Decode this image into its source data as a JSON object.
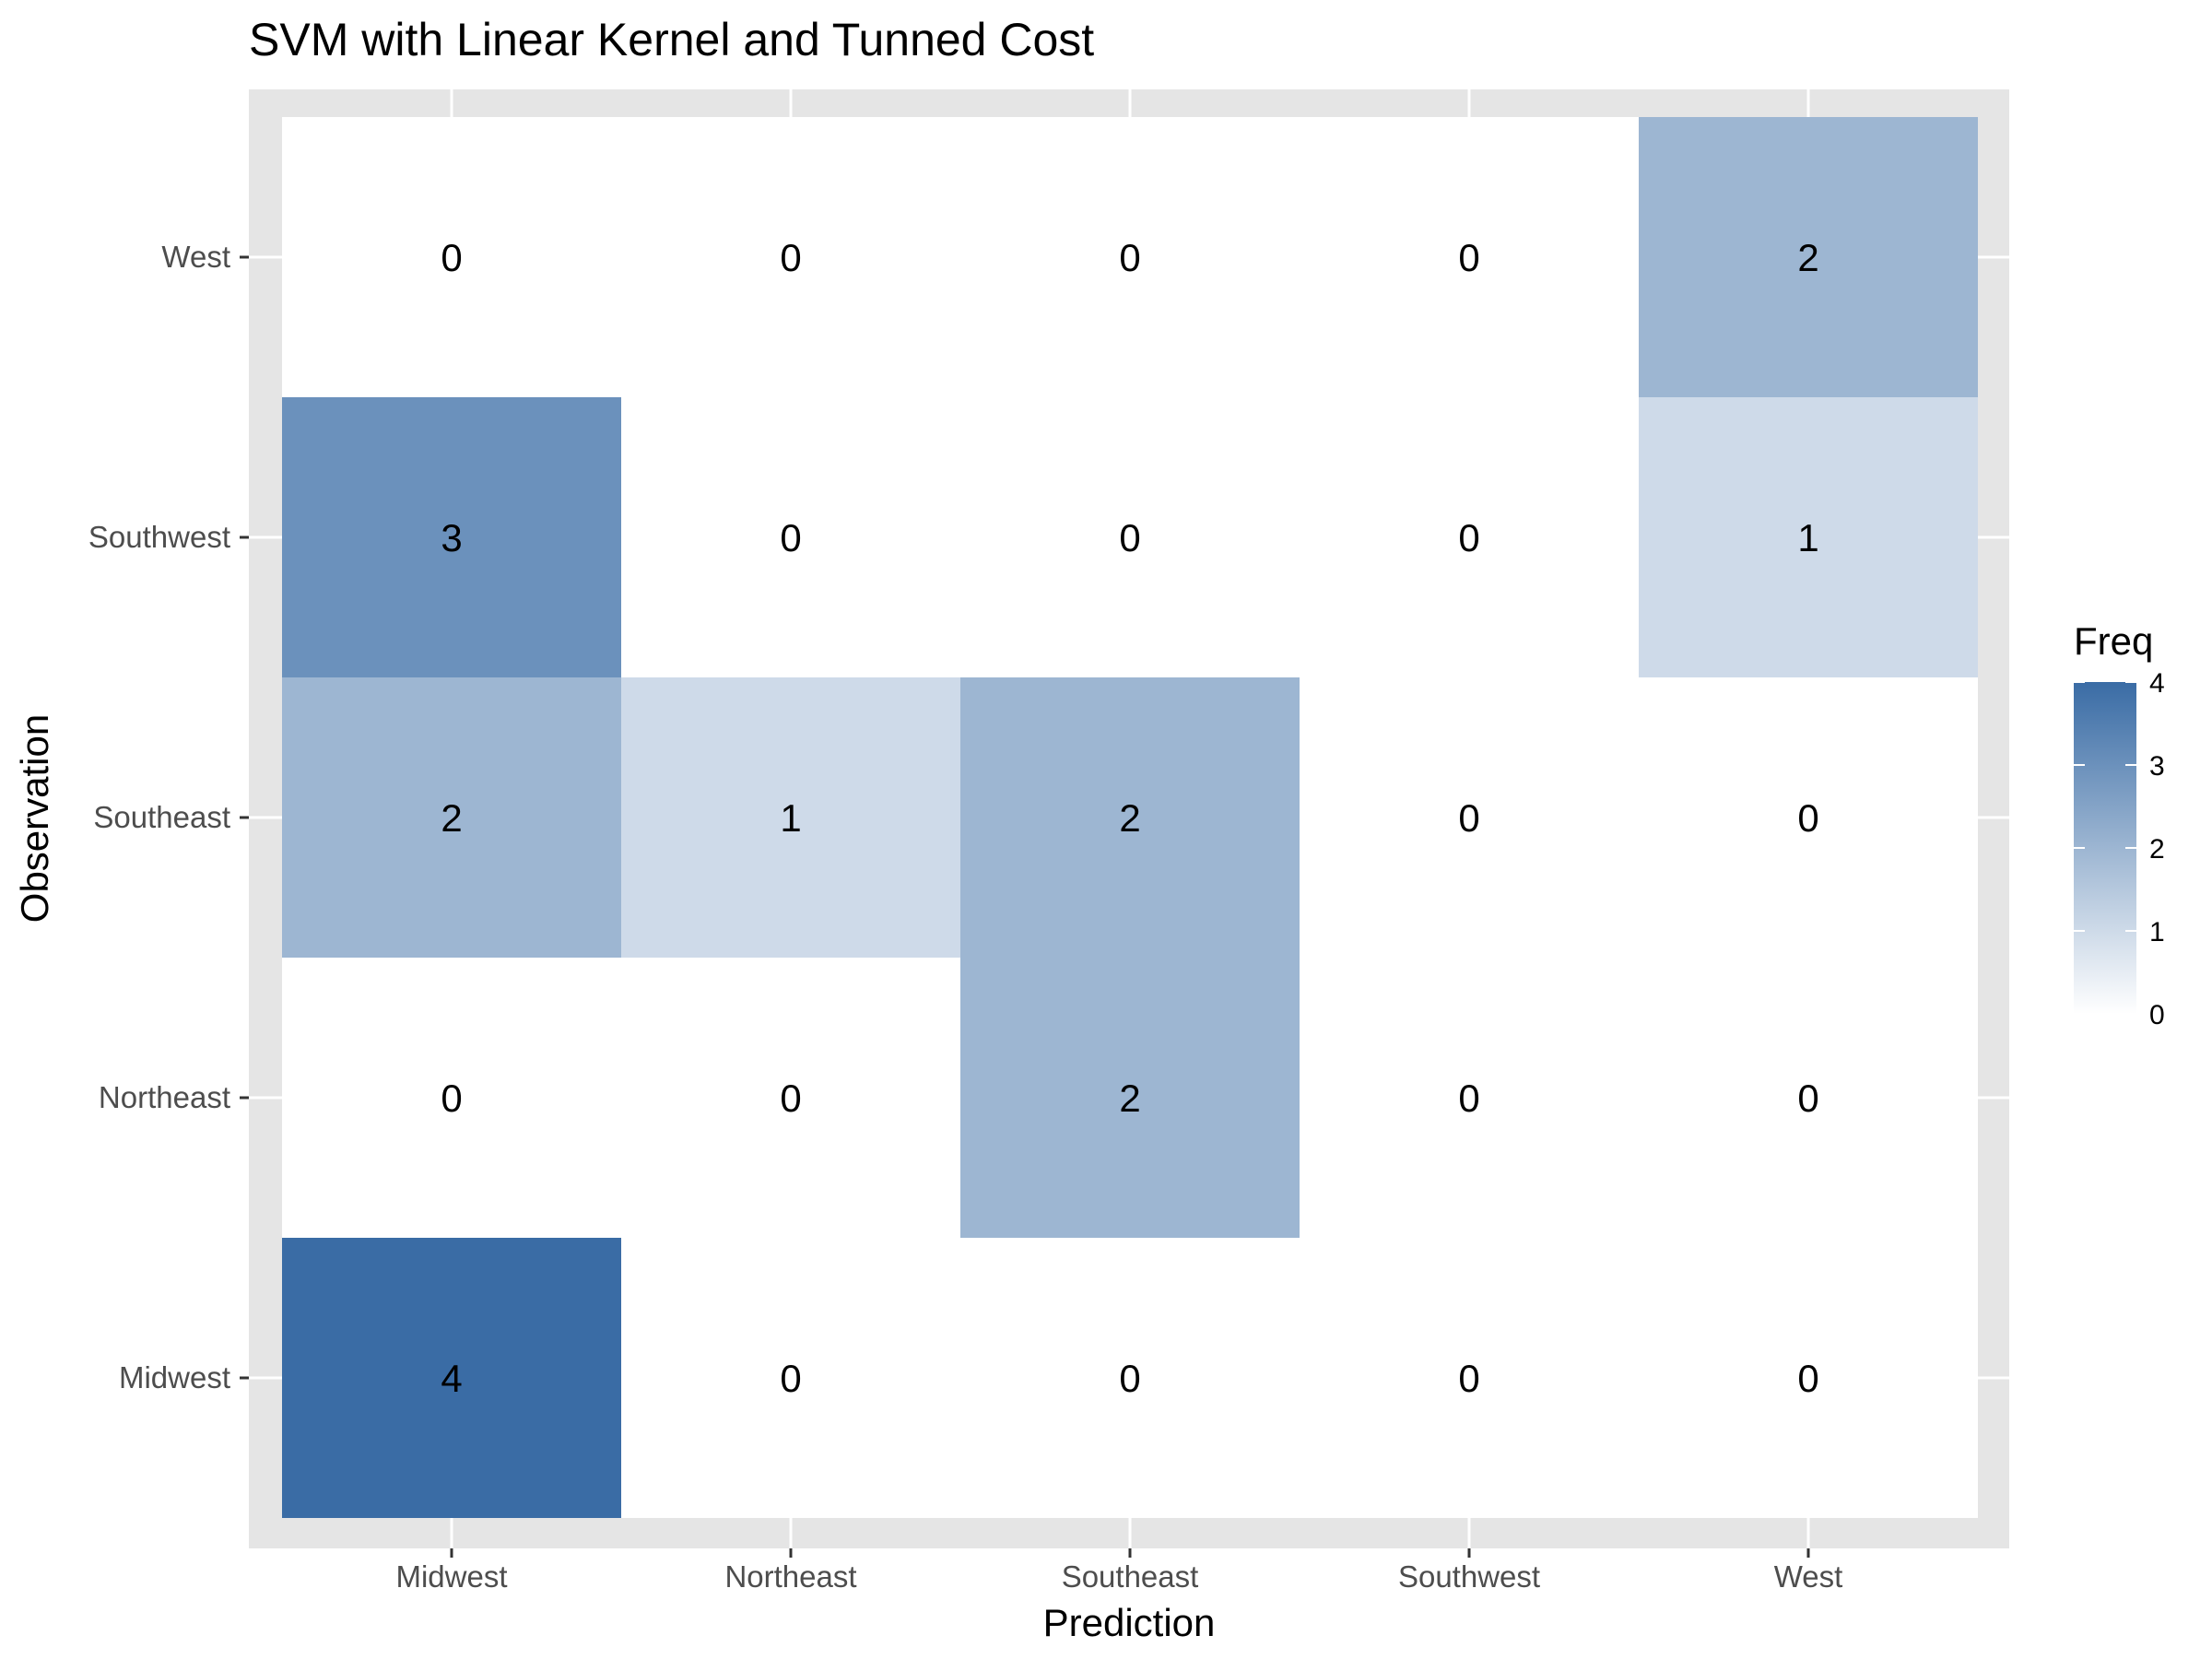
{
  "chart_data": {
    "type": "heatmap",
    "title": "SVM with Linear Kernel and Tunned Cost",
    "xlabel": "Prediction",
    "ylabel": "Observation",
    "x_categories": [
      "Midwest",
      "Northeast",
      "Southeast",
      "Southwest",
      "West"
    ],
    "y_categories": [
      "Midwest",
      "Northeast",
      "Southeast",
      "Southwest",
      "West"
    ],
    "cells": [
      {
        "x": "Midwest",
        "y": "Midwest",
        "value": 4
      },
      {
        "x": "Northeast",
        "y": "Midwest",
        "value": 0
      },
      {
        "x": "Southeast",
        "y": "Midwest",
        "value": 0
      },
      {
        "x": "Southwest",
        "y": "Midwest",
        "value": 0
      },
      {
        "x": "West",
        "y": "Midwest",
        "value": 0
      },
      {
        "x": "Midwest",
        "y": "Northeast",
        "value": 0
      },
      {
        "x": "Northeast",
        "y": "Northeast",
        "value": 0
      },
      {
        "x": "Southeast",
        "y": "Northeast",
        "value": 2
      },
      {
        "x": "Southwest",
        "y": "Northeast",
        "value": 0
      },
      {
        "x": "West",
        "y": "Northeast",
        "value": 0
      },
      {
        "x": "Midwest",
        "y": "Southeast",
        "value": 2
      },
      {
        "x": "Northeast",
        "y": "Southeast",
        "value": 1
      },
      {
        "x": "Southeast",
        "y": "Southeast",
        "value": 2
      },
      {
        "x": "Southwest",
        "y": "Southeast",
        "value": 0
      },
      {
        "x": "West",
        "y": "Southeast",
        "value": 0
      },
      {
        "x": "Midwest",
        "y": "Southwest",
        "value": 3
      },
      {
        "x": "Northeast",
        "y": "Southwest",
        "value": 0
      },
      {
        "x": "Southeast",
        "y": "Southwest",
        "value": 0
      },
      {
        "x": "Southwest",
        "y": "Southwest",
        "value": 0
      },
      {
        "x": "West",
        "y": "Southwest",
        "value": 1
      },
      {
        "x": "Midwest",
        "y": "West",
        "value": 0
      },
      {
        "x": "Northeast",
        "y": "West",
        "value": 0
      },
      {
        "x": "Southeast",
        "y": "West",
        "value": 0
      },
      {
        "x": "Southwest",
        "y": "West",
        "value": 0
      },
      {
        "x": "West",
        "y": "West",
        "value": 2
      }
    ],
    "value_range": [
      0,
      4
    ],
    "color_low": "#ffffff",
    "color_high": "#3a6ca5",
    "legend": {
      "title": "Freq",
      "ticks": [
        0,
        1,
        2,
        3,
        4
      ],
      "placement": "right"
    },
    "panel_background": "#e5e5e5",
    "grid": true
  }
}
